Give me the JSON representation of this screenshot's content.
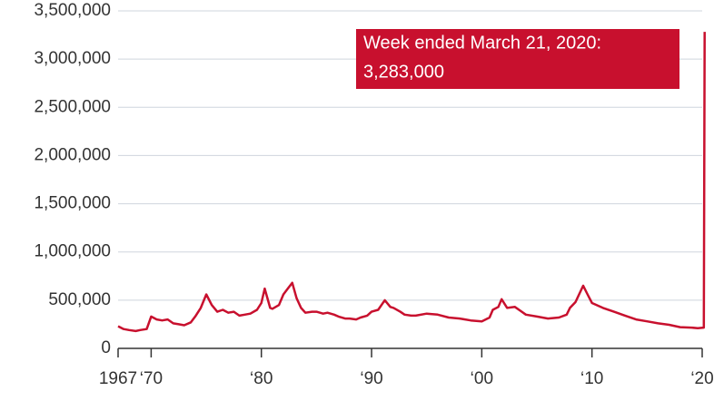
{
  "chart_data": {
    "type": "line",
    "annotation": [
      "Week ended March 21, 2020:",
      "3,283,000"
    ],
    "x": [
      1967,
      1967.5,
      1968,
      1968.6,
      1969,
      1969.6,
      1970,
      1970.5,
      1971,
      1971.5,
      1972,
      1972.5,
      1973,
      1973.6,
      1974,
      1974.5,
      1975,
      1975.5,
      1976,
      1976.5,
      1977,
      1977.5,
      1978,
      1978.5,
      1979,
      1979.6,
      1980,
      1980.3,
      1980.8,
      1981,
      1981.6,
      1982,
      1982.4,
      1982.8,
      1983.2,
      1983.6,
      1984,
      1984.6,
      1985,
      1985.6,
      1986,
      1986.6,
      1987,
      1987.6,
      1988,
      1988.6,
      1989,
      1989.6,
      1990,
      1990.6,
      1991.2,
      1991.7,
      1992,
      1992.6,
      1993,
      1993.6,
      1994,
      1995,
      1996,
      1997,
      1998,
      1999,
      2000,
      2000.7,
      2001,
      2001.5,
      2001.8,
      2002.3,
      2003,
      2003.5,
      2004,
      2005,
      2006,
      2007,
      2007.7,
      2008,
      2008.5,
      2009.2,
      2009.6,
      2010,
      2011,
      2012,
      2013,
      2014,
      2015,
      2016,
      2017,
      2018,
      2019,
      2019.6,
      2020.15,
      2020.22
    ],
    "values": [
      230000,
      200000,
      190000,
      180000,
      190000,
      200000,
      330000,
      300000,
      290000,
      300000,
      260000,
      250000,
      240000,
      270000,
      330000,
      420000,
      560000,
      450000,
      380000,
      400000,
      370000,
      380000,
      340000,
      350000,
      360000,
      400000,
      470000,
      620000,
      420000,
      410000,
      450000,
      560000,
      620000,
      680000,
      520000,
      420000,
      370000,
      380000,
      380000,
      360000,
      370000,
      350000,
      330000,
      310000,
      310000,
      300000,
      320000,
      340000,
      380000,
      400000,
      500000,
      430000,
      420000,
      380000,
      350000,
      340000,
      340000,
      360000,
      350000,
      320000,
      310000,
      290000,
      280000,
      320000,
      400000,
      430000,
      510000,
      420000,
      430000,
      390000,
      350000,
      330000,
      310000,
      320000,
      350000,
      420000,
      480000,
      650000,
      560000,
      470000,
      420000,
      380000,
      340000,
      300000,
      280000,
      260000,
      245000,
      220000,
      215000,
      210000,
      215000,
      3283000
    ],
    "color": "#c8102e",
    "xlim": [
      1967,
      2020
    ],
    "xticks": [
      {
        "value": 1967,
        "label": "1967"
      },
      {
        "value": 1970,
        "label": "‘70"
      },
      {
        "value": 1980,
        "label": "‘80"
      },
      {
        "value": 1990,
        "label": "‘90"
      },
      {
        "value": 2000,
        "label": "‘00"
      },
      {
        "value": 2010,
        "label": "‘10"
      },
      {
        "value": 2020,
        "label": "‘20"
      }
    ],
    "ylim": [
      0,
      3500000
    ],
    "yticks": [
      0,
      {
        "value": 500000,
        "label": "500,000"
      },
      {
        "value": 1000000,
        "label": "1,000,000"
      },
      {
        "value": 1500000,
        "label": "1,500,000"
      },
      {
        "value": 2000000,
        "label": "2,000,000"
      },
      {
        "value": 2500000,
        "label": "2,500,000"
      },
      {
        "value": 3000000,
        "label": "3,000,000"
      },
      {
        "value": 3500000,
        "label": "3,500,000"
      }
    ],
    "grid": true
  }
}
